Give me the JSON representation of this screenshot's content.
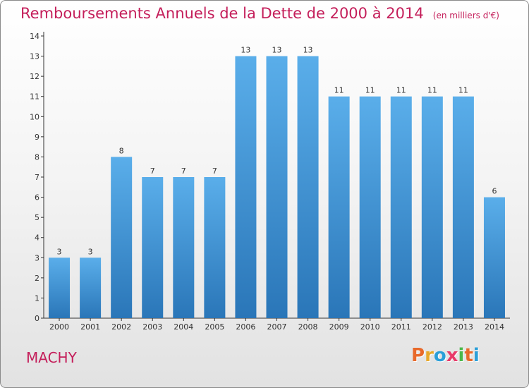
{
  "header": {
    "title": "Remboursements Annuels de la Dette de 2000 à 2014",
    "subtitle": "(en milliers d'€)"
  },
  "footer": {
    "commune": "MACHY",
    "logo_text": "Proxiti"
  },
  "colors": {
    "title": "#c41e5a",
    "bar_top": "#5aaeea",
    "bar_bottom": "#2a76b8",
    "axis": "#333333",
    "logo": [
      "#e8692a",
      "#e8a92a",
      "#2a9fd8",
      "#e83a6a",
      "#4ab84a",
      "#e8692a",
      "#2a9fd8"
    ]
  },
  "chart_data": {
    "type": "bar",
    "categories": [
      "2000",
      "2001",
      "2002",
      "2003",
      "2004",
      "2005",
      "2006",
      "2007",
      "2008",
      "2009",
      "2010",
      "2011",
      "2012",
      "2013",
      "2014"
    ],
    "values": [
      3,
      3,
      8,
      7,
      7,
      7,
      13,
      13,
      13,
      11,
      11,
      11,
      11,
      11,
      6
    ],
    "ylim": [
      0,
      14
    ],
    "yticks": [
      0,
      1,
      2,
      3,
      4,
      5,
      6,
      7,
      8,
      9,
      10,
      11,
      12,
      13,
      14
    ],
    "xlabel": "",
    "ylabel": "",
    "grid": false,
    "legend": "none"
  }
}
